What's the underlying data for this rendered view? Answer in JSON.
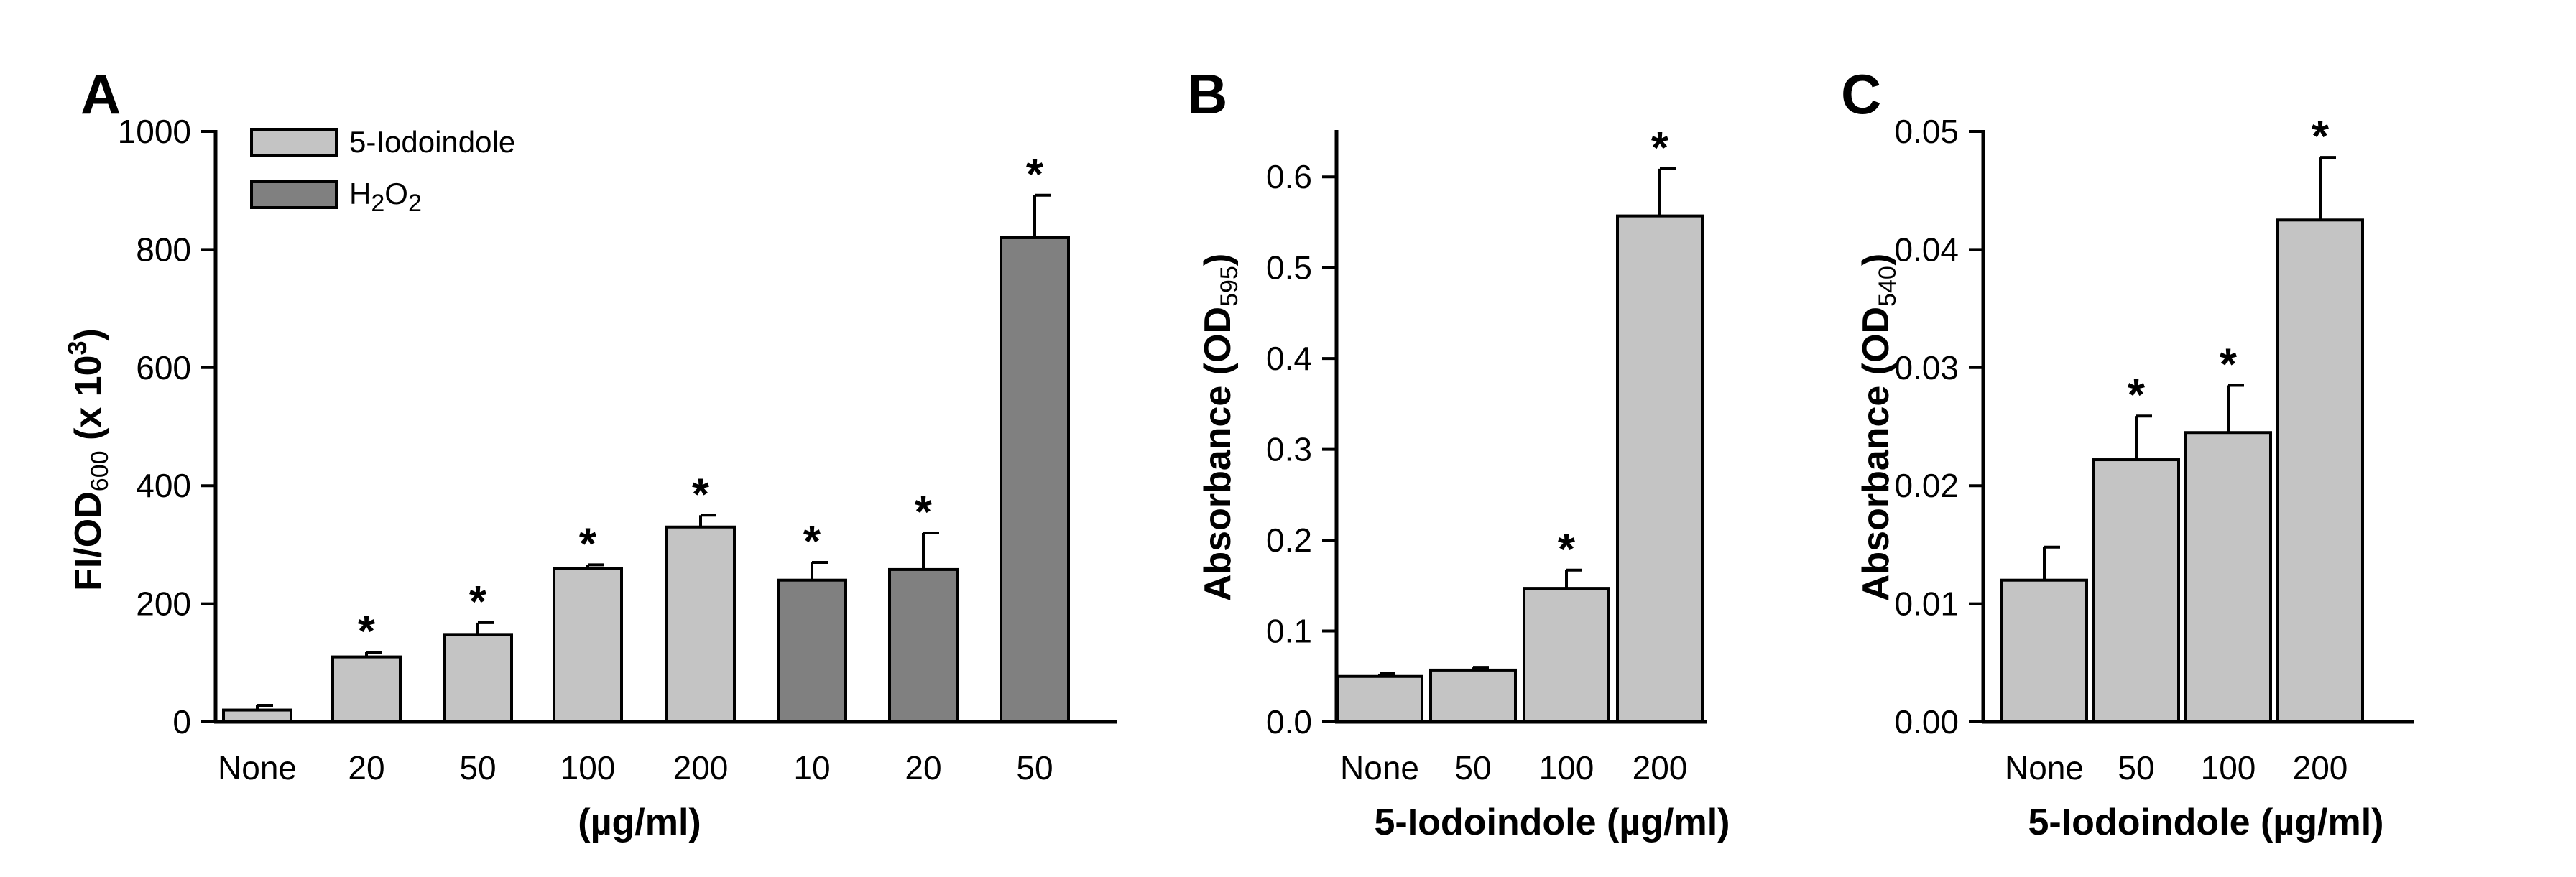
{
  "chart_data": [
    {
      "panel": "A",
      "type": "bar",
      "ylabel_main": "FI/OD",
      "ylabel_sub": "600",
      "ylabel_tail": " (x 10",
      "ylabel_sup": "3",
      "ylabel_end": ")",
      "xlabel": "(µg/ml)",
      "ylim": [
        0,
        1000
      ],
      "yticks": [
        "0",
        "200",
        "400",
        "600",
        "800",
        "1000"
      ],
      "categories": [
        "None",
        "20",
        "50",
        "100",
        "200",
        "10",
        "20",
        "50"
      ],
      "values": [
        20,
        110,
        148,
        260,
        330,
        240,
        258,
        820
      ],
      "errors": [
        8,
        8,
        20,
        6,
        20,
        30,
        62,
        72
      ],
      "group": [
        0,
        0,
        0,
        0,
        0,
        1,
        1,
        1
      ],
      "significant": [
        false,
        true,
        true,
        true,
        true,
        true,
        true,
        true
      ],
      "legend": [
        {
          "label": "5-Iodoindole",
          "color": "#c4c4c4"
        },
        {
          "label": "H",
          "sub1": "2",
          "mid": "O",
          "sub2": "2",
          "color": "#808080"
        }
      ]
    },
    {
      "panel": "B",
      "type": "bar",
      "ylabel_main": "Absorbance (OD",
      "ylabel_sub": "595",
      "ylabel_end": ")",
      "xlabel": "5-Iodoindole (µg/ml)",
      "ylim": [
        0,
        0.65
      ],
      "yticks": [
        "0.0",
        "0.1",
        "0.2",
        "0.3",
        "0.4",
        "0.5",
        "0.6"
      ],
      "categories": [
        "None",
        "50",
        "100",
        "200"
      ],
      "values": [
        0.05,
        0.057,
        0.147,
        0.557
      ],
      "errors": [
        0.003,
        0.003,
        0.02,
        0.052
      ],
      "significant": [
        false,
        false,
        true,
        true
      ]
    },
    {
      "panel": "C",
      "type": "bar",
      "ylabel_main": "Absorbance (OD",
      "ylabel_sub": "540",
      "ylabel_end": ")",
      "xlabel": "5-Iodoindole (µg/ml)",
      "ylim": [
        0,
        0.05
      ],
      "yticks": [
        "0.00",
        "0.01",
        "0.02",
        "0.03",
        "0.04",
        "0.05"
      ],
      "categories": [
        "None",
        "50",
        "100",
        "200"
      ],
      "values": [
        0.012,
        0.0222,
        0.0245,
        0.0425
      ],
      "errors": [
        0.0028,
        0.0037,
        0.004,
        0.0053
      ],
      "significant": [
        false,
        true,
        true,
        true
      ]
    }
  ],
  "significance_marker": "*",
  "colors": {
    "light_bar": "#c4c4c4",
    "dark_bar": "#808080",
    "axis": "#000000"
  }
}
